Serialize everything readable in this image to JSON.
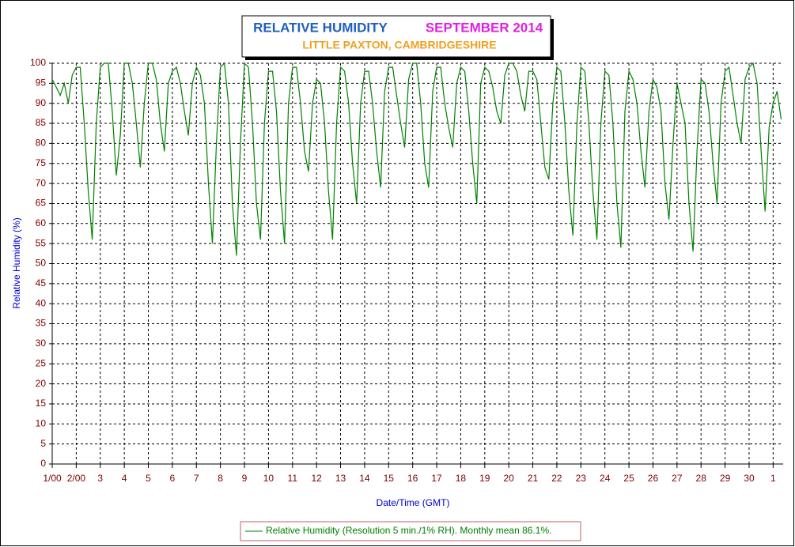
{
  "chart_data": {
    "type": "line",
    "title": "RELATIVE HUMIDITY",
    "title_period": "SEPTEMBER 2014",
    "subtitle": "LITTLE PAXTON, CAMBRIDGESHIRE",
    "x_label": "Date/Time (GMT)",
    "y_label": "Relative Humidity (%)",
    "xlim": [
      0,
      730
    ],
    "ylim": [
      0,
      100
    ],
    "xticks": [
      {
        "value": 0,
        "label": "1/00"
      },
      {
        "value": 24,
        "label": "2/00"
      },
      {
        "value": 48,
        "label": "3"
      },
      {
        "value": 72,
        "label": "4"
      },
      {
        "value": 96,
        "label": "5"
      },
      {
        "value": 120,
        "label": "6"
      },
      {
        "value": 144,
        "label": "7"
      },
      {
        "value": 168,
        "label": "8"
      },
      {
        "value": 192,
        "label": "9"
      },
      {
        "value": 216,
        "label": "10"
      },
      {
        "value": 240,
        "label": "11"
      },
      {
        "value": 264,
        "label": "12"
      },
      {
        "value": 288,
        "label": "13"
      },
      {
        "value": 312,
        "label": "14"
      },
      {
        "value": 336,
        "label": "15"
      },
      {
        "value": 360,
        "label": "16"
      },
      {
        "value": 384,
        "label": "17"
      },
      {
        "value": 408,
        "label": "18"
      },
      {
        "value": 432,
        "label": "19"
      },
      {
        "value": 456,
        "label": "20"
      },
      {
        "value": 480,
        "label": "21"
      },
      {
        "value": 504,
        "label": "22"
      },
      {
        "value": 528,
        "label": "23"
      },
      {
        "value": 552,
        "label": "24"
      },
      {
        "value": 576,
        "label": "25"
      },
      {
        "value": 600,
        "label": "26"
      },
      {
        "value": 624,
        "label": "27"
      },
      {
        "value": 648,
        "label": "28"
      },
      {
        "value": 672,
        "label": "29"
      },
      {
        "value": 696,
        "label": "30"
      },
      {
        "value": 720,
        "label": "1"
      }
    ],
    "yticks": [
      0,
      5,
      10,
      15,
      20,
      25,
      30,
      35,
      40,
      45,
      50,
      55,
      60,
      65,
      70,
      75,
      80,
      85,
      90,
      95,
      100
    ],
    "grid": true,
    "x": [
      0,
      4,
      8,
      12,
      16,
      20,
      24,
      28,
      32,
      36,
      40,
      44,
      48,
      52,
      56,
      60,
      64,
      68,
      72,
      76,
      80,
      84,
      88,
      92,
      96,
      100,
      104,
      108,
      112,
      116,
      120,
      124,
      128,
      132,
      136,
      140,
      144,
      148,
      152,
      156,
      160,
      164,
      168,
      172,
      176,
      180,
      184,
      188,
      192,
      196,
      200,
      204,
      208,
      212,
      216,
      220,
      224,
      228,
      232,
      236,
      240,
      244,
      248,
      252,
      256,
      260,
      264,
      268,
      272,
      276,
      280,
      284,
      288,
      292,
      296,
      300,
      304,
      308,
      312,
      316,
      320,
      324,
      328,
      332,
      336,
      340,
      344,
      348,
      352,
      356,
      360,
      364,
      368,
      372,
      376,
      380,
      384,
      388,
      392,
      396,
      400,
      404,
      408,
      412,
      416,
      420,
      424,
      428,
      432,
      436,
      440,
      444,
      448,
      452,
      456,
      460,
      464,
      468,
      472,
      476,
      480,
      484,
      488,
      492,
      496,
      500,
      504,
      508,
      512,
      516,
      520,
      524,
      528,
      532,
      536,
      540,
      544,
      548,
      552,
      556,
      560,
      564,
      568,
      572,
      576,
      580,
      584,
      588,
      592,
      596,
      600,
      604,
      608,
      612,
      616,
      620,
      624,
      628,
      632,
      636,
      640,
      644,
      648,
      652,
      656,
      660,
      664,
      668,
      672,
      676,
      680,
      684,
      688,
      692,
      696,
      700,
      704,
      708,
      712,
      716,
      720,
      724,
      728
    ],
    "series": [
      {
        "name": "Relative Humidity (Resolution 5 min./1% RH). Monthly mean 86.1%.",
        "color": "#008000",
        "values": [
          96,
          94,
          92,
          95,
          90,
          97,
          99,
          99,
          85,
          68,
          56,
          85,
          99,
          100,
          100,
          88,
          72,
          82,
          100,
          100,
          95,
          85,
          74,
          90,
          100,
          100,
          96,
          85,
          78,
          95,
          98,
          99,
          95,
          88,
          82,
          95,
          99,
          97,
          90,
          70,
          55,
          80,
          99,
          100,
          90,
          65,
          52,
          80,
          100,
          99,
          85,
          65,
          56,
          85,
          98,
          98,
          88,
          68,
          55,
          90,
          99,
          99,
          90,
          78,
          73,
          90,
          96,
          95,
          85,
          68,
          56,
          85,
          99,
          98,
          90,
          75,
          65,
          90,
          98,
          98,
          90,
          78,
          69,
          93,
          99,
          99,
          92,
          85,
          79,
          96,
          100,
          100,
          90,
          75,
          69,
          93,
          99,
          99,
          90,
          84,
          79,
          95,
          99,
          98,
          88,
          75,
          65,
          95,
          99,
          98,
          94,
          88,
          85,
          97,
          100,
          100,
          98,
          92,
          88,
          98,
          98,
          96,
          85,
          74,
          71,
          90,
          99,
          98,
          85,
          68,
          57,
          85,
          99,
          98,
          85,
          68,
          56,
          85,
          98,
          97,
          85,
          65,
          54,
          88,
          98,
          96,
          90,
          78,
          69,
          88,
          96,
          94,
          88,
          70,
          61,
          80,
          95,
          90,
          85,
          65,
          53,
          78,
          96,
          95,
          88,
          75,
          65,
          90,
          98,
          99,
          92,
          85,
          80,
          96,
          99,
          100,
          95,
          78,
          63,
          84,
          90,
          93,
          86
        ]
      }
    ]
  }
}
